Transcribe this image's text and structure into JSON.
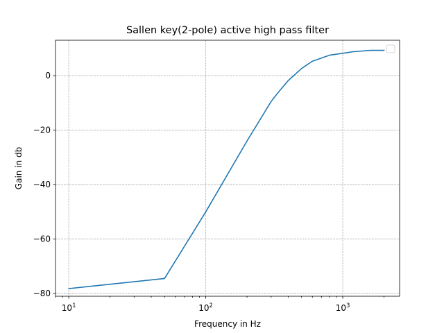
{
  "chart_data": {
    "type": "line",
    "title": "Sallen key(2-pole) active high pass filter",
    "xlabel": "Frequency in Hz",
    "ylabel": "Gain in db",
    "xscale": "log",
    "xlim": [
      8,
      2600
    ],
    "ylim": [
      -81,
      13
    ],
    "x_ticks": [
      {
        "value": 10,
        "base": "10",
        "exp": "1"
      },
      {
        "value": 100,
        "base": "10",
        "exp": "2"
      },
      {
        "value": 1000,
        "base": "10",
        "exp": "3"
      }
    ],
    "y_ticks": [
      {
        "value": 0,
        "label": "0"
      },
      {
        "value": -20,
        "label": "−20"
      },
      {
        "value": -40,
        "label": "−40"
      },
      {
        "value": -60,
        "label": "−60"
      },
      {
        "value": -80,
        "label": "−80"
      }
    ],
    "grid": true,
    "legend": "upper right (empty)",
    "series": [
      {
        "color": "#1f77b4",
        "x": [
          10,
          50,
          100,
          200,
          300,
          330,
          400,
          500,
          600,
          800,
          1000,
          1200,
          1600,
          2000
        ],
        "y": [
          -78.2,
          -74.5,
          -50,
          -24,
          -9.5,
          -6.8,
          -1.8,
          2.6,
          5.3,
          7.5,
          8.2,
          8.8,
          9.3,
          9.3
        ]
      }
    ]
  }
}
